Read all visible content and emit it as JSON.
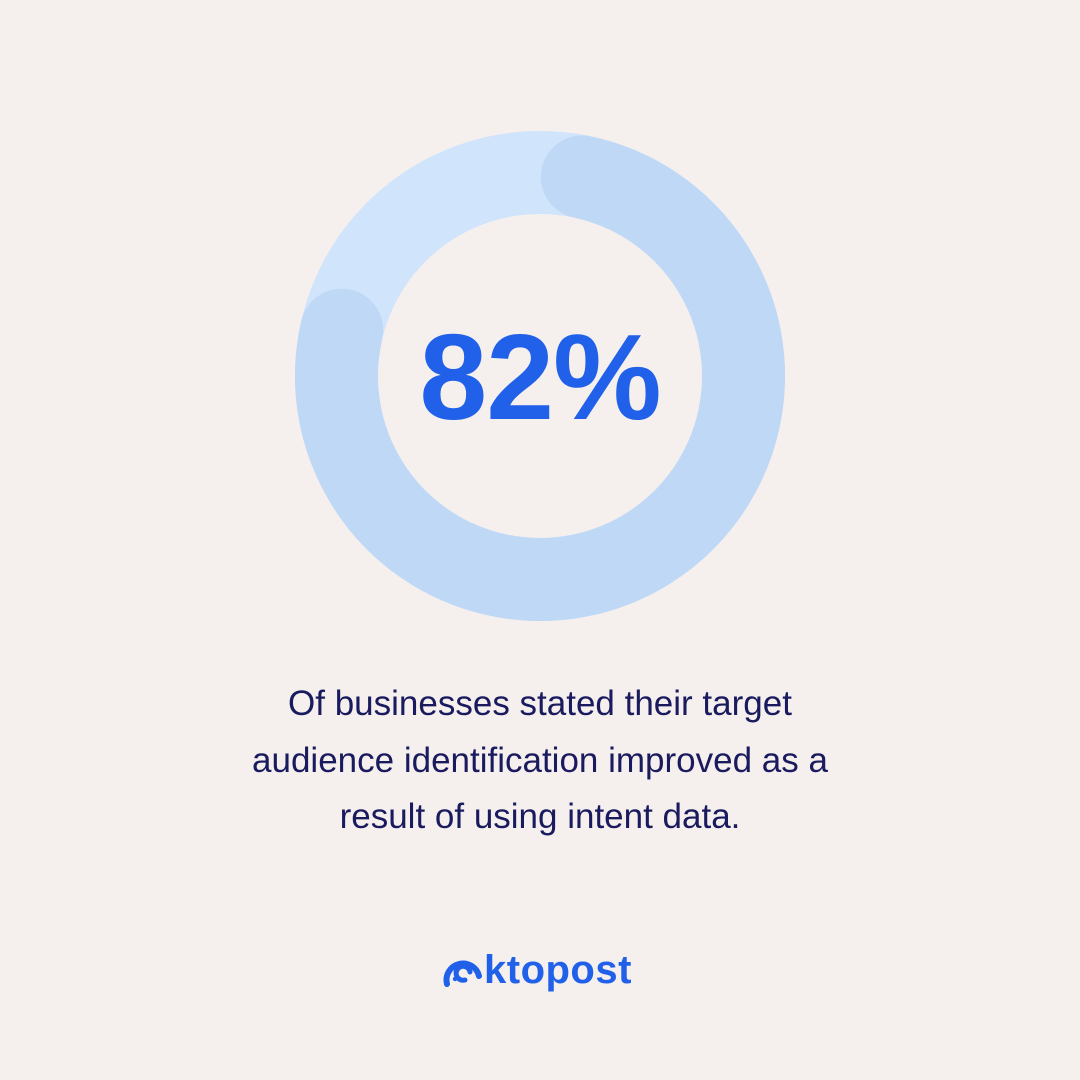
{
  "chart_data": {
    "type": "pie",
    "variant": "donut",
    "value": 82,
    "unit": "%",
    "label": "82%",
    "colors": {
      "track": "#D0E4FC",
      "progress": "#BFD8F5",
      "label": "#2160E8"
    }
  },
  "caption": {
    "lines": [
      "Of businesses stated their target",
      "audience identification improved as a",
      "result of using intent data."
    ]
  },
  "brand": {
    "name": "oktopost",
    "wordmark": "ktopost",
    "icon": "octopus-spiral-icon",
    "color": "#2160E8"
  }
}
